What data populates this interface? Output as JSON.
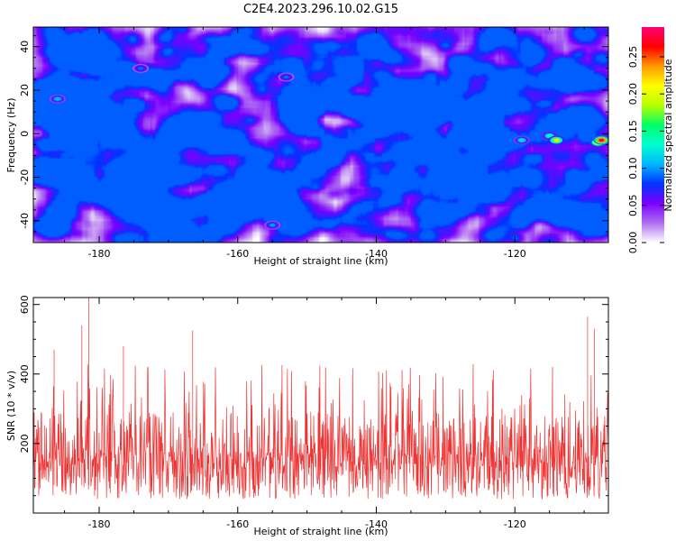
{
  "figure": {
    "title": "C2E4.2023.296.10.02.G15"
  },
  "chart_data": [
    {
      "type": "heatmap",
      "title": "C2E4.2023.296.10.02.G15",
      "xlabel": "Height of straight line (km)",
      "ylabel": "Frequency (Hz)",
      "xlim": [
        -189.5,
        -106.5
      ],
      "ylim": [
        -50,
        49
      ],
      "xticks": [
        -180,
        -160,
        -140,
        -120
      ],
      "xtick_labels": [
        "-180",
        "-160",
        "-140",
        "-120"
      ],
      "yticks": [
        -40,
        -20,
        0,
        20,
        40
      ],
      "ytick_labels": [
        "-40",
        "-20",
        "0",
        "20",
        "40"
      ],
      "colorbar": {
        "label": "Normalized spectral amplitude",
        "range": [
          0,
          0.29
        ],
        "ticks": [
          0.0,
          0.05,
          0.1,
          0.15,
          0.2,
          0.25
        ],
        "tick_labels": [
          "0.00",
          "0.05",
          "0.10",
          "0.15",
          "0.20",
          "0.25"
        ],
        "colors": [
          "#ffffff",
          "#b06ff0",
          "#7a00ff",
          "#0033ff",
          "#00b7ff",
          "#00ffd0",
          "#00ff66",
          "#b7ff00",
          "#ffff00",
          "#ff9900",
          "#ff0000",
          "#ff0077"
        ]
      },
      "background_amplitude": [
        0.0,
        0.07
      ],
      "hotspots": [
        {
          "x": -119.0,
          "y": -3,
          "amplitude": 0.12
        },
        {
          "x": -115.0,
          "y": -1,
          "amplitude": 0.14
        },
        {
          "x": -114.0,
          "y": -3,
          "amplitude": 0.2
        },
        {
          "x": -108.0,
          "y": -4,
          "amplitude": 0.24
        },
        {
          "x": -107.5,
          "y": -3,
          "amplitude": 0.28
        },
        {
          "x": -155.0,
          "y": -42,
          "amplitude": 0.1
        },
        {
          "x": -186.0,
          "y": 16,
          "amplitude": 0.11
        },
        {
          "x": -174.0,
          "y": 30,
          "amplitude": 0.09
        },
        {
          "x": -153.0,
          "y": 26,
          "amplitude": 0.09
        }
      ],
      "grid": false
    },
    {
      "type": "line",
      "xlabel": "Height of straight line (km)",
      "ylabel": "SNR (10 * v/v)",
      "xlim": [
        -189.5,
        -106.5
      ],
      "ylim": [
        0,
        620
      ],
      "xticks": [
        -180,
        -160,
        -140,
        -120
      ],
      "xtick_labels": [
        "-180",
        "-160",
        "-140",
        "-120"
      ],
      "yticks": [
        200,
        400,
        600
      ],
      "ytick_labels": [
        "200",
        "400",
        "600"
      ],
      "color": "#ee3333",
      "typical_range": [
        40,
        290
      ],
      "peaks": [
        {
          "x": -181.5,
          "y": 620
        },
        {
          "x": -182.5,
          "y": 540
        },
        {
          "x": -166.5,
          "y": 525
        },
        {
          "x": -109.5,
          "y": 565
        },
        {
          "x": -108.5,
          "y": 530
        },
        {
          "x": -186.5,
          "y": 470
        },
        {
          "x": -176.5,
          "y": 480
        }
      ],
      "grid": false
    }
  ]
}
